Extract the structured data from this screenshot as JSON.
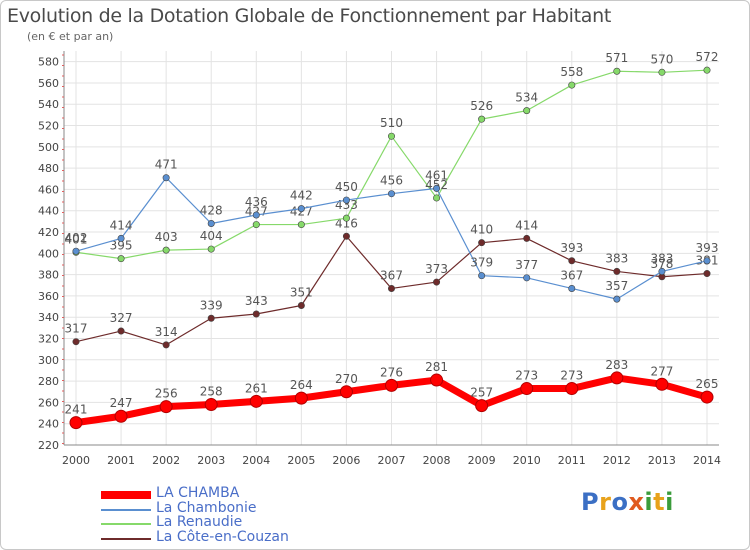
{
  "title": "Evolution de la Dotation Globale de Fonctionnement par Habitant",
  "subtitle": "(en € et par an)",
  "logo": {
    "text": "Proxiti",
    "letters": [
      "P",
      "r",
      "o",
      "x",
      "i",
      "t",
      "i"
    ],
    "colors": [
      "#3b6fc4",
      "#e8a21b",
      "#3b6fc4",
      "#e05a1e",
      "#3b9c3b",
      "#e8a21b",
      "#3b9c3b"
    ]
  },
  "chart_data": {
    "type": "line",
    "x": [
      "2000",
      "2001",
      "2002",
      "2003",
      "2004",
      "2005",
      "2006",
      "2007",
      "2008",
      "2009",
      "2010",
      "2011",
      "2012",
      "2013",
      "2014"
    ],
    "ylim": [
      220,
      590
    ],
    "yticks": [
      240,
      260,
      280,
      300,
      320,
      340,
      360,
      380,
      400,
      420,
      440,
      460,
      480,
      500,
      520,
      540,
      560,
      580
    ],
    "yticks_labels": [
      "240",
      "260",
      "280",
      "300",
      "320",
      "340",
      "360",
      "380",
      "400",
      "420",
      "440",
      "460",
      "480",
      "500",
      "520",
      "540",
      "560",
      "580"
    ],
    "y_axis_label_220": "220",
    "grid": true,
    "legend_position": "bottom-left",
    "series": [
      {
        "name": "LA CHAMBA",
        "color": "#ff0000",
        "values": [
          241,
          247,
          256,
          258,
          261,
          264,
          270,
          276,
          281,
          257,
          273,
          273,
          283,
          277,
          265
        ],
        "labels": [
          "241",
          "247",
          "256",
          "258",
          "261",
          "264",
          "270",
          "276",
          "281",
          "257",
          "273",
          "273",
          "283",
          "277",
          "265"
        ]
      },
      {
        "name": "La Chambonie",
        "color": "#5a8fd0",
        "values": [
          402,
          414,
          471,
          428,
          436,
          442,
          450,
          456,
          461,
          379,
          377,
          367,
          357,
          383,
          393
        ],
        "labels": [
          "402",
          "414",
          "471",
          "428",
          "436",
          "442",
          "450",
          "456",
          "461",
          "379",
          "377",
          "367",
          "357",
          "383",
          "393"
        ]
      },
      {
        "name": "La Renaudie",
        "color": "#86d96a",
        "values": [
          401,
          395,
          403,
          404,
          427,
          427,
          433,
          510,
          452,
          526,
          534,
          558,
          571,
          570,
          572
        ],
        "labels": [
          "401",
          "395",
          "403",
          "404",
          "427",
          "427",
          "433",
          "510",
          "452",
          "526",
          "534",
          "558",
          "571",
          "570",
          "572"
        ]
      },
      {
        "name": "La Côte-en-Couzan",
        "color": "#6e2b2b",
        "values": [
          317,
          327,
          314,
          339,
          343,
          351,
          416,
          367,
          373,
          410,
          414,
          393,
          383,
          378,
          381
        ],
        "labels": [
          "317",
          "327",
          "314",
          "339",
          "343",
          "351",
          "416",
          "367",
          "373",
          "410",
          "414",
          "393",
          "383",
          "378",
          "381"
        ]
      }
    ]
  }
}
